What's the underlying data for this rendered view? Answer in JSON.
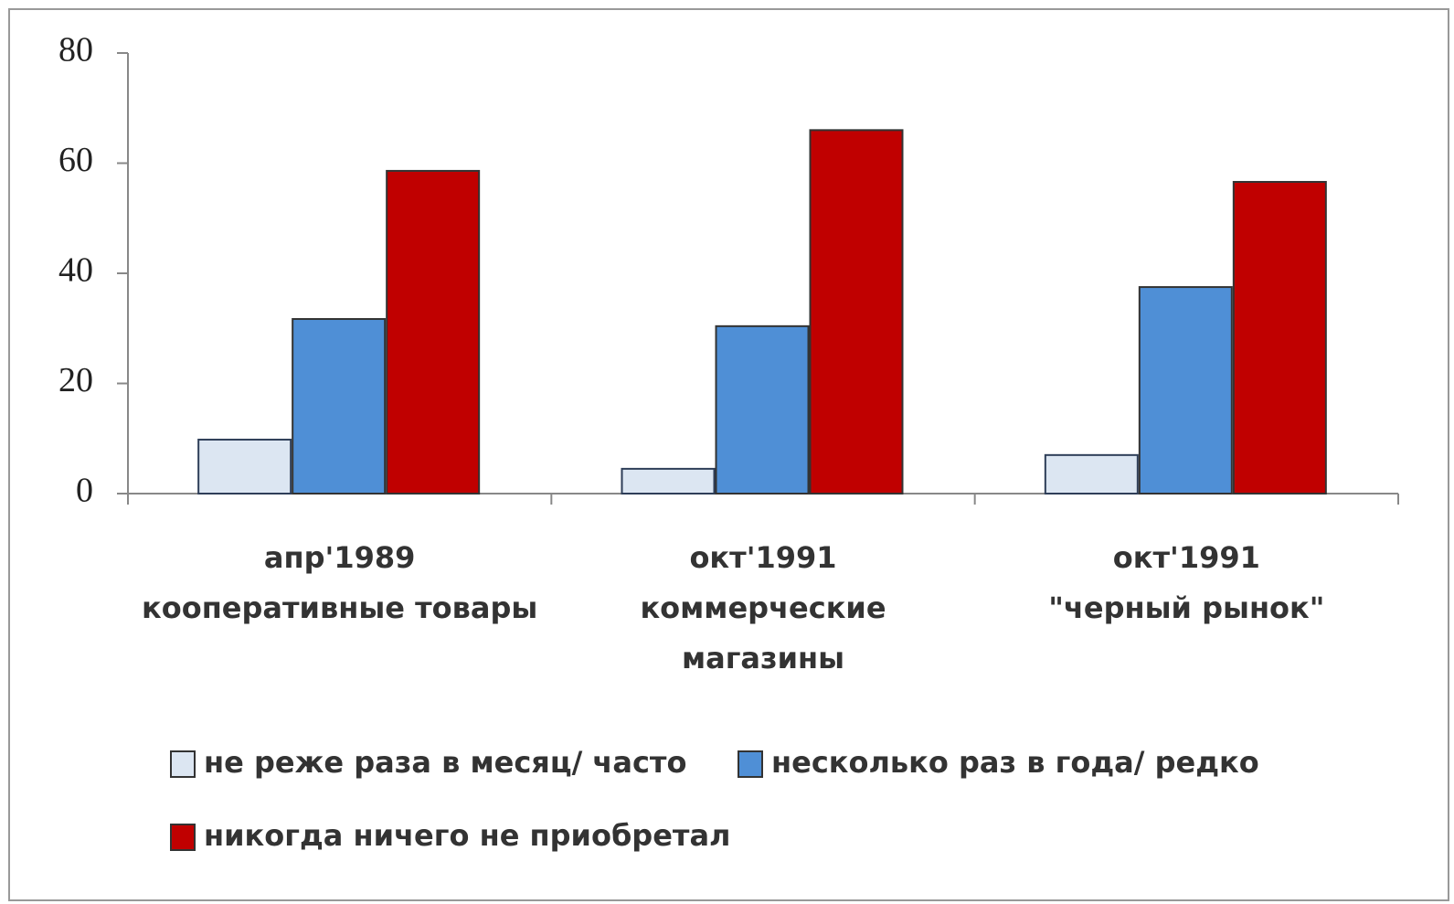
{
  "chart_data": {
    "type": "bar",
    "categories": [
      [
        "апр'1989",
        "кооперативные товары"
      ],
      [
        "окт'1991",
        "коммерческие",
        "магазины"
      ],
      [
        "окт'1991",
        "\"черный рынок\""
      ]
    ],
    "series": [
      {
        "name": "не реже раза в месяц/ часто",
        "color": "#dce6f2",
        "values": [
          9.8,
          4.5,
          7
        ]
      },
      {
        "name": "несколько раз в года/ редко",
        "color": "#4f8fd6",
        "values": [
          31.7,
          30.4,
          37.5
        ]
      },
      {
        "name": "никогда ничего не приобретал",
        "color": "#c00000",
        "values": [
          58.6,
          66,
          56.6
        ]
      }
    ],
    "ylim": [
      0,
      80
    ],
    "yticks": [
      0,
      20,
      40,
      60,
      80
    ],
    "grid": false,
    "legend": "bottom"
  }
}
